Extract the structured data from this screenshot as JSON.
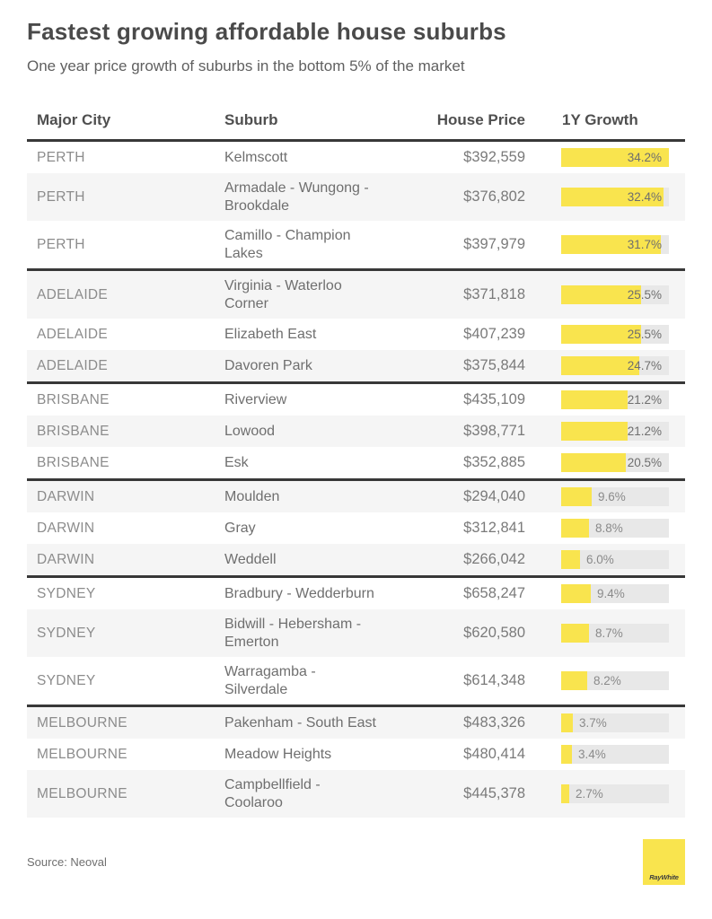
{
  "header": {
    "title": "Fastest growing affordable house suburbs",
    "subtitle": "One year price growth of suburbs in the bottom 5% of the market"
  },
  "chart_data": {
    "type": "bar",
    "title": "Fastest growing affordable house suburbs",
    "subtitle": "One year price growth of suburbs in the bottom 5% of the market",
    "orientation": "horizontal",
    "value_suffix": "%",
    "scale_max": 34.2,
    "columns": [
      "Major City",
      "Suburb",
      "House Price",
      "1Y Growth"
    ],
    "groups": [
      {
        "city": "PERTH",
        "rows": [
          {
            "suburb": "Kelmscott",
            "house_price": "$392,559",
            "growth_pct": 34.2,
            "growth_label": "34.2%"
          },
          {
            "suburb": "Armadale - Wungong - Brookdale",
            "house_price": "$376,802",
            "growth_pct": 32.4,
            "growth_label": "32.4%"
          },
          {
            "suburb": "Camillo - Champion Lakes",
            "house_price": "$397,979",
            "growth_pct": 31.7,
            "growth_label": "31.7%"
          }
        ]
      },
      {
        "city": "ADELAIDE",
        "rows": [
          {
            "suburb": "Virginia - Waterloo Corner",
            "house_price": "$371,818",
            "growth_pct": 25.5,
            "growth_label": "25.5%"
          },
          {
            "suburb": "Elizabeth East",
            "house_price": "$407,239",
            "growth_pct": 25.5,
            "growth_label": "25.5%"
          },
          {
            "suburb": "Davoren Park",
            "house_price": "$375,844",
            "growth_pct": 24.7,
            "growth_label": "24.7%"
          }
        ]
      },
      {
        "city": "BRISBANE",
        "rows": [
          {
            "suburb": "Riverview",
            "house_price": "$435,109",
            "growth_pct": 21.2,
            "growth_label": "21.2%"
          },
          {
            "suburb": "Lowood",
            "house_price": "$398,771",
            "growth_pct": 21.2,
            "growth_label": "21.2%"
          },
          {
            "suburb": "Esk",
            "house_price": "$352,885",
            "growth_pct": 20.5,
            "growth_label": "20.5%"
          }
        ]
      },
      {
        "city": "DARWIN",
        "rows": [
          {
            "suburb": "Moulden",
            "house_price": "$294,040",
            "growth_pct": 9.6,
            "growth_label": "9.6%"
          },
          {
            "suburb": "Gray",
            "house_price": "$312,841",
            "growth_pct": 8.8,
            "growth_label": "8.8%"
          },
          {
            "suburb": "Weddell",
            "house_price": "$266,042",
            "growth_pct": 6.0,
            "growth_label": "6.0%"
          }
        ]
      },
      {
        "city": "SYDNEY",
        "rows": [
          {
            "suburb": "Bradbury - Wedderburn",
            "house_price": "$658,247",
            "growth_pct": 9.4,
            "growth_label": "9.4%"
          },
          {
            "suburb": "Bidwill - Hebersham - Emerton",
            "house_price": "$620,580",
            "growth_pct": 8.7,
            "growth_label": "8.7%"
          },
          {
            "suburb": "Warragamba - Silverdale",
            "house_price": "$614,348",
            "growth_pct": 8.2,
            "growth_label": "8.2%"
          }
        ]
      },
      {
        "city": "MELBOURNE",
        "rows": [
          {
            "suburb": "Pakenham - South East",
            "house_price": "$483,326",
            "growth_pct": 3.7,
            "growth_label": "3.7%"
          },
          {
            "suburb": "Meadow Heights",
            "house_price": "$480,414",
            "growth_pct": 3.4,
            "growth_label": "3.4%"
          },
          {
            "suburb": "Campbellfield - Coolaroo",
            "house_price": "$445,378",
            "growth_pct": 2.7,
            "growth_label": "2.7%"
          }
        ]
      }
    ]
  },
  "footer": {
    "source": "Source: Neoval",
    "logo_text": "RayWhite"
  },
  "colors": {
    "accent_yellow": "#F9E44E",
    "bar_track": "#E8E8E8",
    "row_alt": "#F5F5F5",
    "separator": "#383838"
  }
}
